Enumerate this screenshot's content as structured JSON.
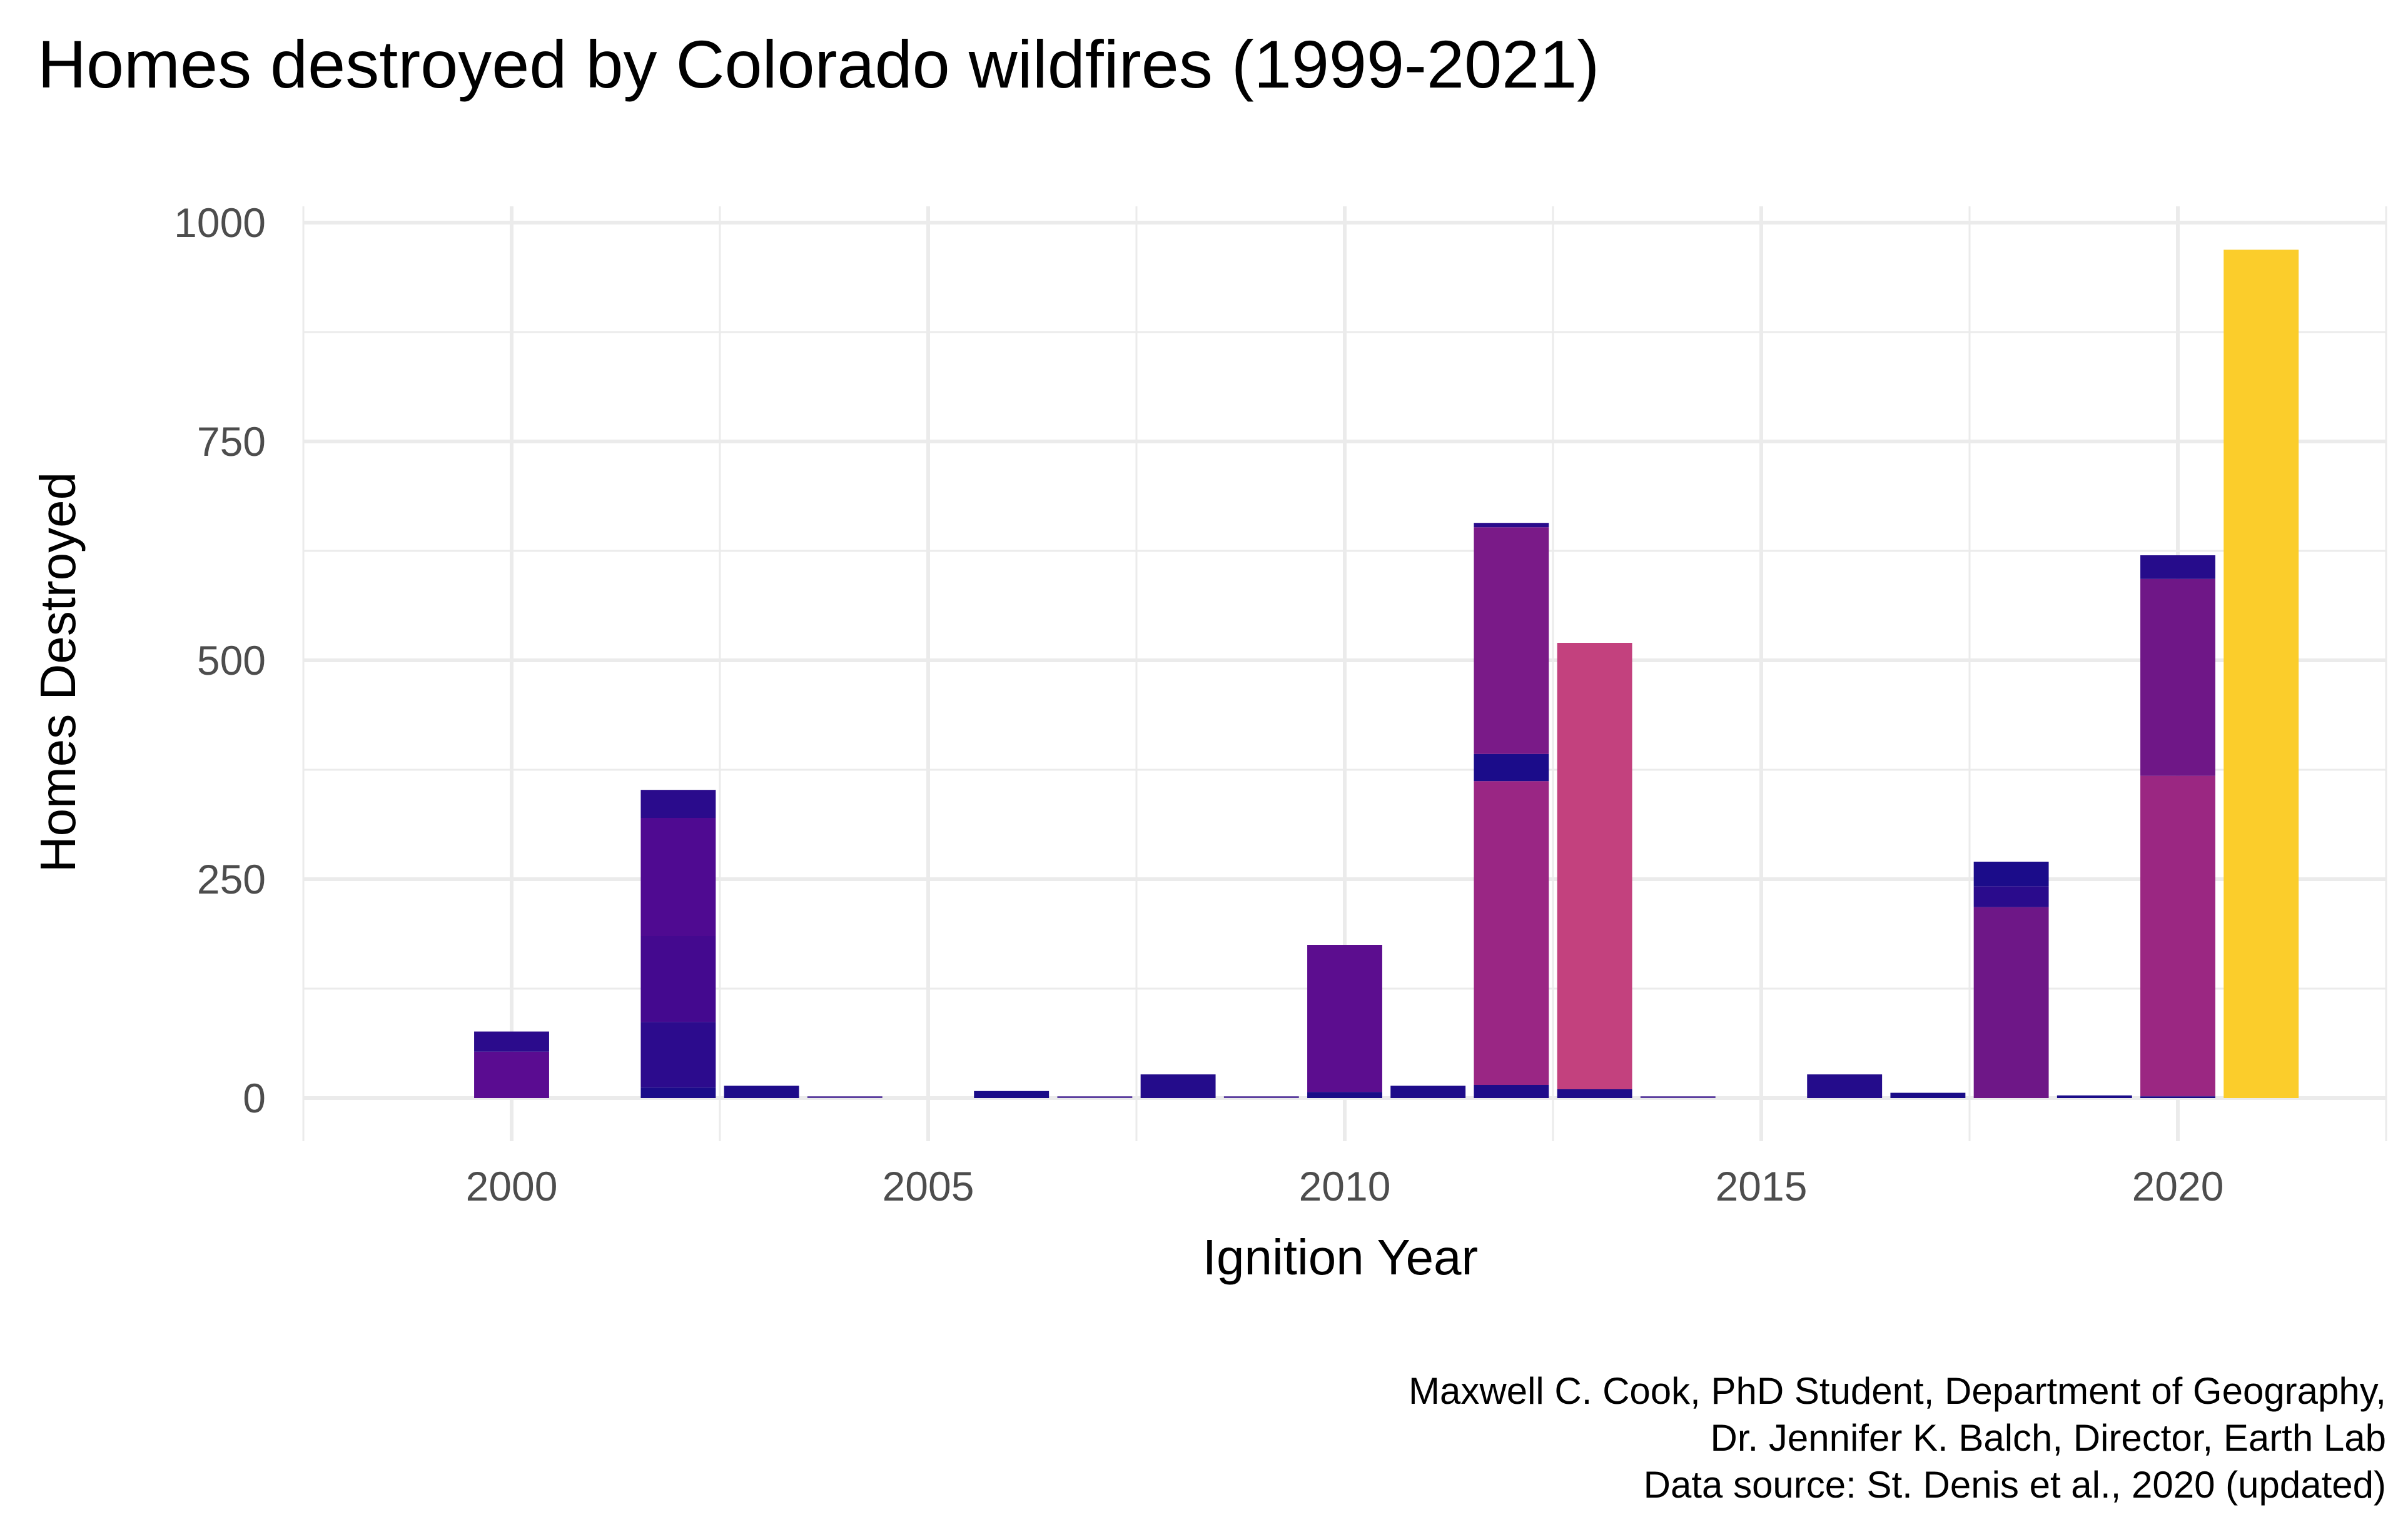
{
  "chart_data": {
    "type": "bar",
    "stacked": true,
    "title": "Homes destroyed by Colorado wildfires (1999-2021)",
    "xlabel": "Ignition Year",
    "ylabel": "Homes Destroyed",
    "xlim": [
      1997.5,
      2022.5
    ],
    "ylim": [
      -30,
      1000
    ],
    "x_ticks": [
      "2000",
      "2005",
      "2010",
      "2015",
      "2020"
    ],
    "y_ticks": [
      "0",
      "250",
      "500",
      "750",
      "1000"
    ],
    "grid": true,
    "legend": "none",
    "caption": [
      "Maxwell C. Cook, PhD Student, Department of Geography,",
      "Dr. Jennifer K. Balch, Director, Earth Lab",
      "Data source: St. Denis et al., 2020 (updated)"
    ],
    "bars": [
      {
        "year": 2000,
        "segments": [
          {
            "value": 53,
            "color": "#5a0c91"
          },
          {
            "value": 23,
            "color": "#2b0b8c"
          }
        ]
      },
      {
        "year": 2002,
        "segments": [
          {
            "value": 12,
            "color": "#1b0c8a"
          },
          {
            "value": 75,
            "color": "#2c0b8d"
          },
          {
            "value": 98,
            "color": "#44098f"
          },
          {
            "value": 135,
            "color": "#4f0a91"
          },
          {
            "value": 32,
            "color": "#2a0b8c"
          }
        ]
      },
      {
        "year": 2003,
        "segments": [
          {
            "value": 14,
            "color": "#1e0c8a"
          }
        ]
      },
      {
        "year": 2004,
        "segments": [
          {
            "value": 2,
            "color": "#5b3ea0"
          }
        ]
      },
      {
        "year": 2006,
        "segments": [
          {
            "value": 8,
            "color": "#1a0c88"
          }
        ]
      },
      {
        "year": 2007,
        "segments": [
          {
            "value": 2,
            "color": "#5b3ea0"
          }
        ]
      },
      {
        "year": 2008,
        "segments": [
          {
            "value": 27,
            "color": "#240c8b"
          }
        ]
      },
      {
        "year": 2009,
        "segments": [
          {
            "value": 2,
            "color": "#5b3ea0"
          }
        ]
      },
      {
        "year": 2010,
        "segments": [
          {
            "value": 7,
            "color": "#1a0c88"
          },
          {
            "value": 168,
            "color": "#5c0d8f"
          }
        ]
      },
      {
        "year": 2011,
        "segments": [
          {
            "value": 14,
            "color": "#1e0c8a"
          }
        ]
      },
      {
        "year": 2012,
        "segments": [
          {
            "value": 15,
            "color": "#1e0c8a"
          },
          {
            "value": 347,
            "color": "#9a2684"
          },
          {
            "value": 31,
            "color": "#1b0c8a"
          },
          {
            "value": 259,
            "color": "#7a1a88"
          },
          {
            "value": 5,
            "color": "#2a0c8c"
          }
        ]
      },
      {
        "year": 2013,
        "segments": [
          {
            "value": 10,
            "color": "#1e0c8a"
          },
          {
            "value": 510,
            "color": "#c3417e"
          }
        ]
      },
      {
        "year": 2014,
        "segments": [
          {
            "value": 2,
            "color": "#5b3ea0"
          }
        ]
      },
      {
        "year": 2016,
        "segments": [
          {
            "value": 27,
            "color": "#240c8b"
          }
        ]
      },
      {
        "year": 2017,
        "segments": [
          {
            "value": 6,
            "color": "#1a0c88"
          }
        ]
      },
      {
        "year": 2018,
        "segments": [
          {
            "value": 218,
            "color": "#6e1787"
          },
          {
            "value": 24,
            "color": "#2a0b8c"
          },
          {
            "value": 28,
            "color": "#1b0c8a"
          }
        ]
      },
      {
        "year": 2019,
        "segments": [
          {
            "value": 3,
            "color": "#1a0c88"
          }
        ]
      },
      {
        "year": 2020,
        "segments": [
          {
            "value": 2,
            "color": "#1a0c88"
          },
          {
            "value": 366,
            "color": "#9b2782"
          },
          {
            "value": 225,
            "color": "#6f1787"
          },
          {
            "value": 27,
            "color": "#260c8b"
          }
        ]
      },
      {
        "year": 2021,
        "segments": [
          {
            "value": 969,
            "color": "#fbcd2b"
          }
        ]
      }
    ]
  }
}
